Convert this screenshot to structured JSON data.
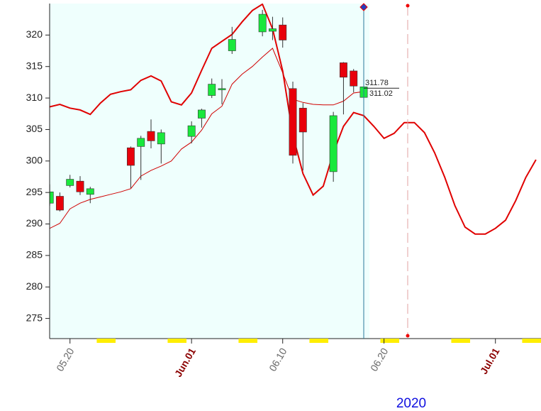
{
  "chart_data": {
    "type": "candlestick",
    "x_label": "2020",
    "categories": [
      null,
      null,
      "05.20",
      null,
      null,
      null,
      null,
      null,
      null,
      null,
      null,
      null,
      null,
      null,
      "Jun.01",
      null,
      null,
      null,
      null,
      null,
      null,
      null,
      null,
      "06.10",
      null,
      null,
      null,
      null,
      null,
      null,
      null,
      null,
      null,
      "06.20",
      null,
      null,
      null,
      null,
      null,
      null,
      null,
      null,
      null,
      null,
      "Jul.01",
      null,
      null,
      null,
      null
    ],
    "open": [
      293.3,
      294.4,
      296.1,
      296.8,
      294.7,
      null,
      null,
      null,
      302.1,
      302.3,
      304.7,
      302.7,
      null,
      null,
      303.9,
      306.8,
      310.4,
      311.3,
      317.5,
      null,
      null,
      320.5,
      320.6,
      321.6,
      311.5,
      308.4,
      null,
      null,
      298.3,
      315.6,
      314.3,
      310.1,
      null,
      null,
      null,
      null,
      null,
      null,
      null,
      null,
      null,
      null,
      null,
      null,
      null,
      null,
      null,
      null,
      null
    ],
    "high": [
      296.3,
      295.0,
      297.8,
      297.6,
      295.9,
      null,
      null,
      null,
      302.3,
      304.0,
      306.6,
      305.0,
      null,
      null,
      306.3,
      308.3,
      313.1,
      313.0,
      321.3,
      null,
      null,
      324.0,
      322.9,
      322.8,
      312.6,
      309.2,
      null,
      null,
      307.8,
      315.7,
      314.6,
      312.1,
      null,
      null,
      null,
      null,
      null,
      null,
      null,
      null,
      null,
      null,
      null,
      null,
      null,
      null,
      null,
      null,
      null
    ],
    "low": [
      292.9,
      292.0,
      295.8,
      294.6,
      293.3,
      null,
      null,
      null,
      295.7,
      297.0,
      302.0,
      299.6,
      null,
      null,
      302.8,
      305.3,
      310.0,
      309.0,
      317.0,
      null,
      null,
      319.8,
      319.2,
      318.0,
      299.6,
      298.5,
      null,
      null,
      296.7,
      307.4,
      310.9,
      310.0,
      null,
      null,
      null,
      null,
      null,
      null,
      null,
      null,
      null,
      null,
      null,
      null,
      null,
      null,
      null,
      null,
      null
    ],
    "close": [
      295.1,
      292.2,
      297.1,
      295.1,
      295.6,
      null,
      null,
      null,
      299.3,
      303.6,
      303.2,
      304.5,
      null,
      null,
      305.6,
      308.1,
      312.2,
      311.5,
      319.3,
      null,
      null,
      323.3,
      321.0,
      319.2,
      300.9,
      304.6,
      null,
      null,
      307.2,
      313.3,
      311.9,
      311.78,
      null,
      null,
      null,
      null,
      null,
      null,
      null,
      null,
      null,
      null,
      null,
      null,
      null,
      null,
      null,
      null,
      null
    ],
    "up_color": "#19e83c",
    "down_color": "#e8000b",
    "overlays": [
      {
        "color": "#e00000",
        "width": 2,
        "values": [
          308.6,
          309.0,
          308.4,
          308.1,
          307.4,
          309.2,
          310.6,
          311.0,
          311.3,
          312.8,
          313.5,
          312.7,
          309.4,
          308.9,
          310.8,
          314.4,
          317.9,
          319.0,
          320.1,
          322.1,
          323.9,
          324.9,
          321.0,
          314.3,
          304.1,
          298.0,
          294.6,
          296.0,
          301.3,
          305.5,
          307.7,
          307.2,
          305.5,
          303.6,
          304.4,
          306.1,
          306.1,
          304.5,
          301.3,
          297.4,
          292.9,
          289.5,
          288.4,
          288.4,
          289.3,
          290.6,
          293.7,
          297.4,
          300.2
        ]
      },
      {
        "color": "#d00000",
        "width": 1,
        "values": [
          289.3,
          290.1,
          292.4,
          293.3,
          293.9,
          294.3,
          294.7,
          295.1,
          295.6,
          297.6,
          298.5,
          299.2,
          300.0,
          301.9,
          303.0,
          304.9,
          307.5,
          308.7,
          312.2,
          313.8,
          315.0,
          316.5,
          317.9,
          314.0,
          309.8,
          309.3,
          309.0,
          308.9,
          308.9,
          309.5,
          310.8,
          311.02,
          null,
          null,
          null,
          null,
          null,
          null,
          null,
          null,
          null,
          null,
          null,
          null,
          null,
          null,
          null,
          null,
          null
        ]
      }
    ],
    "ylim": [
      271.8,
      325
    ],
    "yticks": [
      275,
      280,
      285,
      290,
      295,
      300,
      305,
      310,
      315,
      320
    ]
  }
}
